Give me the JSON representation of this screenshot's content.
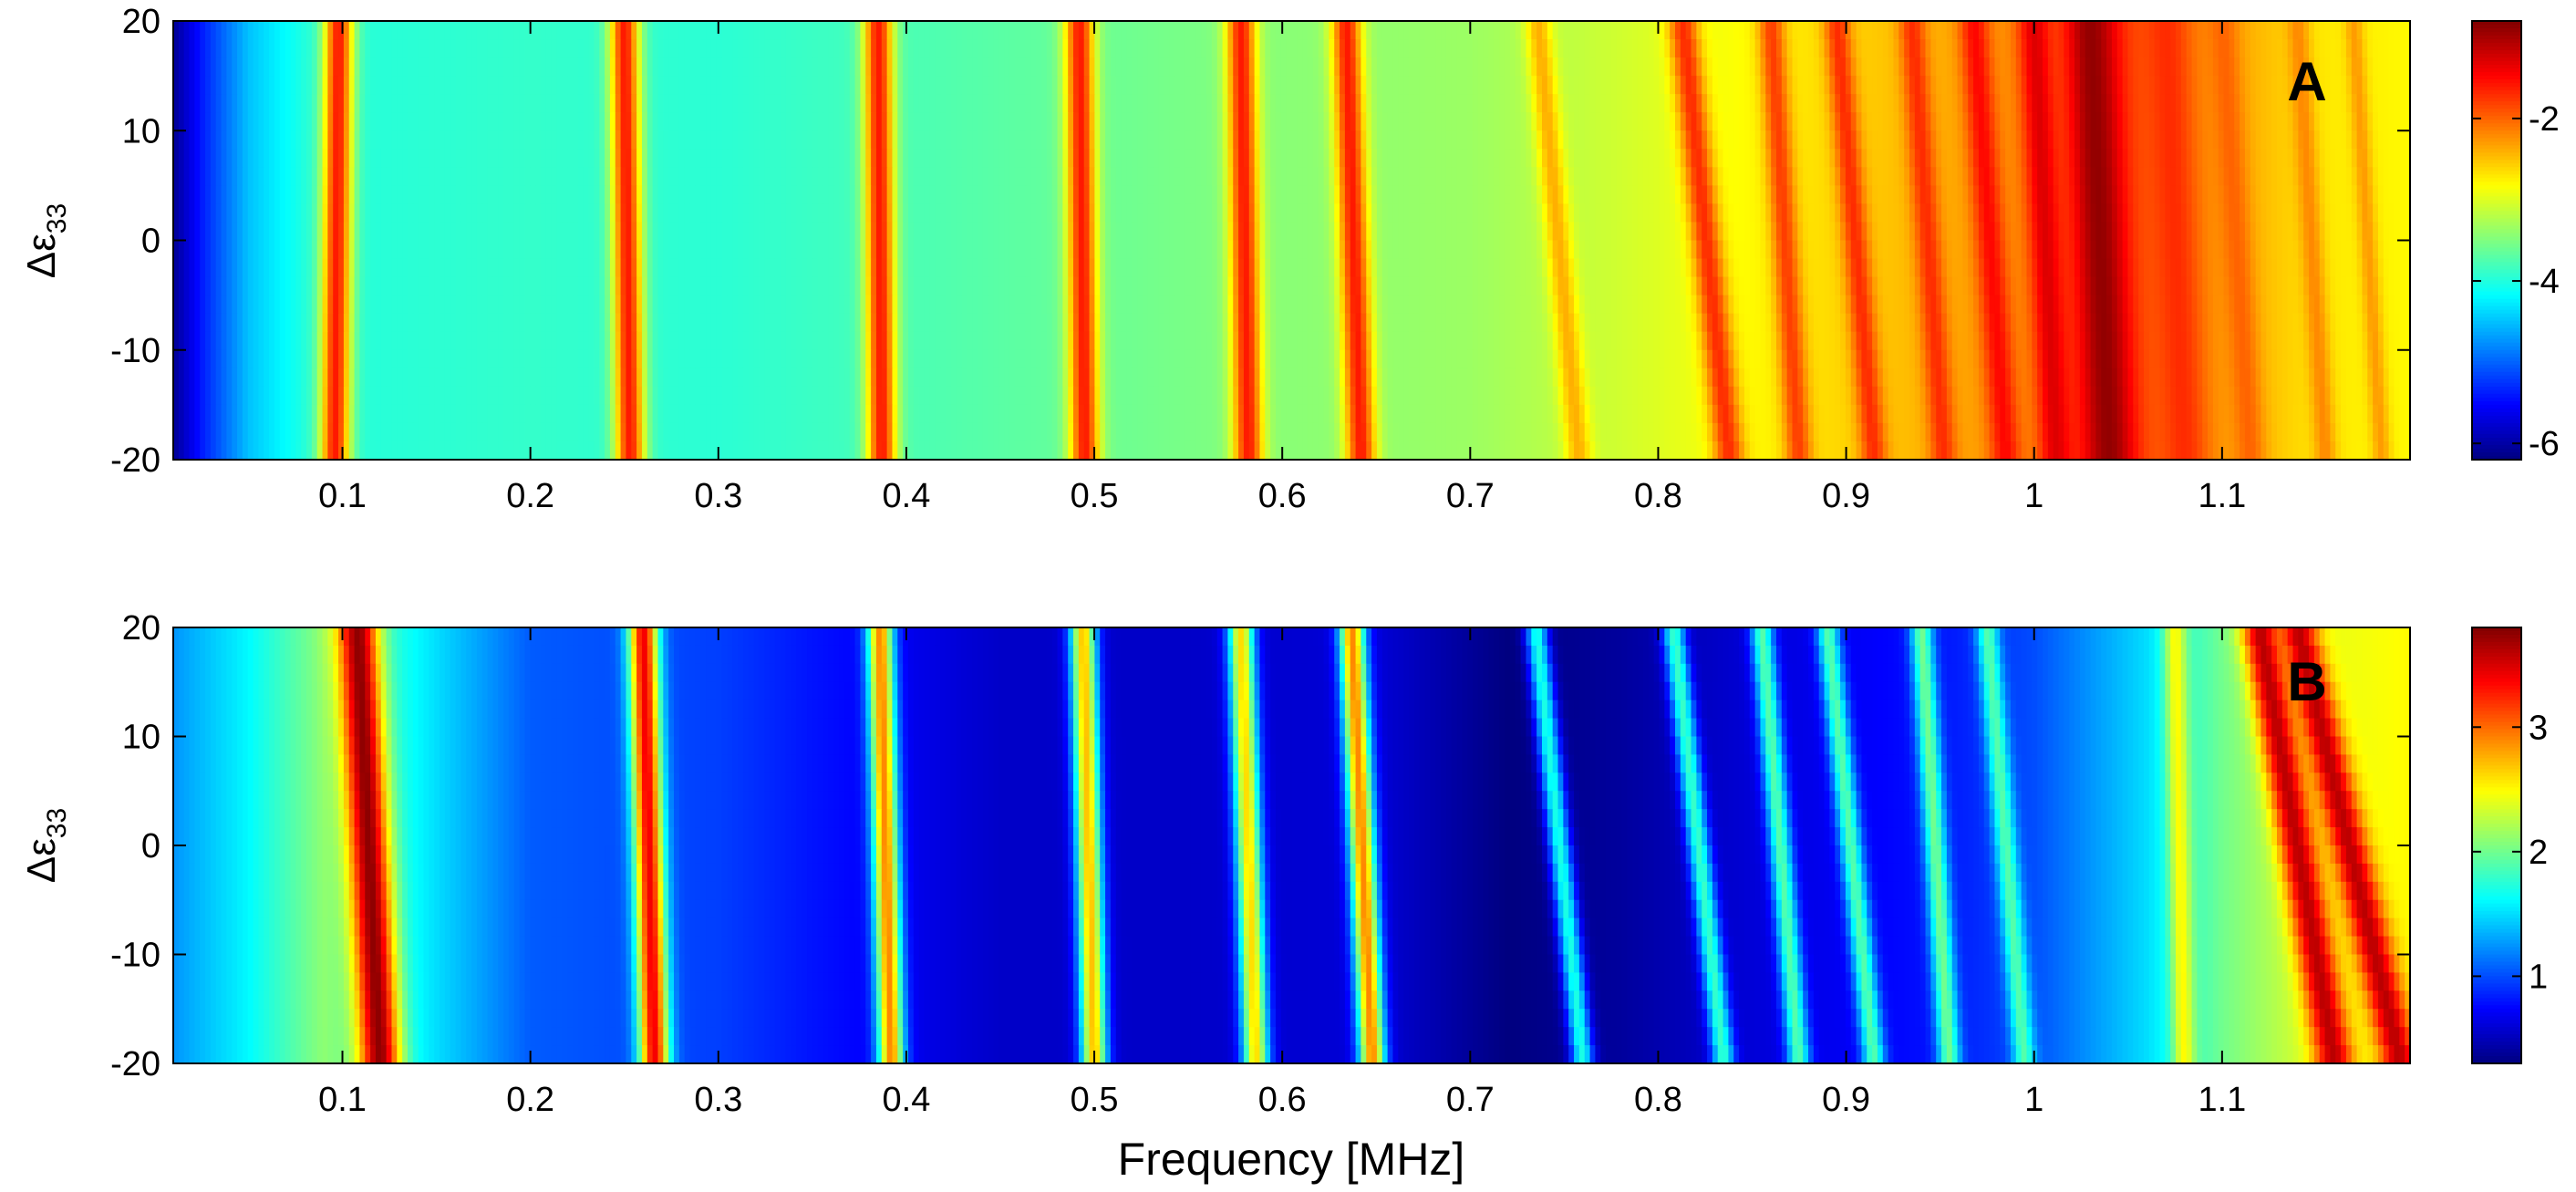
{
  "chart_data": [
    {
      "type": "heatmap",
      "panel_label": "A",
      "xlabel": "",
      "ylabel_main": "Δε",
      "ylabel_sub": "33",
      "xlim": [
        0.01,
        1.2
      ],
      "ylim": [
        -20,
        20
      ],
      "x_ticks": [
        "0.1",
        "0.2",
        "0.3",
        "0.4",
        "0.5",
        "0.6",
        "0.7",
        "0.8",
        "0.9",
        "1",
        "1.1"
      ],
      "y_ticks": [
        "-20",
        "-10",
        "0",
        "10",
        "20"
      ],
      "colorbar": {
        "min": -6.2,
        "max": -0.8,
        "ticks": [
          "-6",
          "-4",
          "-2"
        ]
      },
      "background": [
        {
          "x": 0.01,
          "v": -6.1
        },
        {
          "x": 0.025,
          "v": -5.4
        },
        {
          "x": 0.05,
          "v": -4.5
        },
        {
          "x": 0.08,
          "v": -4.0
        },
        {
          "x": 0.2,
          "v": -3.9
        },
        {
          "x": 0.3,
          "v": -3.95
        },
        {
          "x": 0.45,
          "v": -3.7
        },
        {
          "x": 0.6,
          "v": -3.45
        },
        {
          "x": 0.7,
          "v": -3.35
        },
        {
          "x": 0.8,
          "v": -3.0
        },
        {
          "x": 0.9,
          "v": -2.6
        },
        {
          "x": 1.0,
          "v": -2.2
        },
        {
          "x": 1.04,
          "v": -1.8
        },
        {
          "x": 1.1,
          "v": -2.3
        },
        {
          "x": 1.15,
          "v": -2.7
        },
        {
          "x": 1.2,
          "v": -2.8
        }
      ],
      "resonances": [
        {
          "f_at_top": 0.098,
          "f_at_bottom": 0.096,
          "peak": -1.6,
          "width": 0.008
        },
        {
          "f_at_top": 0.25,
          "f_at_bottom": 0.253,
          "peak": -1.6,
          "width": 0.008
        },
        {
          "f_at_top": 0.385,
          "f_at_bottom": 0.387,
          "peak": -1.6,
          "width": 0.008
        },
        {
          "f_at_top": 0.492,
          "f_at_bottom": 0.495,
          "peak": -1.6,
          "width": 0.008
        },
        {
          "f_at_top": 0.578,
          "f_at_bottom": 0.582,
          "peak": -1.6,
          "width": 0.008
        },
        {
          "f_at_top": 0.634,
          "f_at_bottom": 0.642,
          "peak": -1.6,
          "width": 0.008
        },
        {
          "f_at_top": 0.736,
          "f_at_bottom": 0.758,
          "peak": -2.4,
          "width": 0.007
        },
        {
          "f_at_top": 0.813,
          "f_at_bottom": 0.838,
          "peak": -1.7,
          "width": 0.008
        },
        {
          "f_at_top": 0.86,
          "f_at_bottom": 0.875,
          "peak": -1.8,
          "width": 0.007
        },
        {
          "f_at_top": 0.895,
          "f_at_bottom": 0.915,
          "peak": -1.7,
          "width": 0.007
        },
        {
          "f_at_top": 0.935,
          "f_at_bottom": 0.952,
          "peak": -1.7,
          "width": 0.007
        },
        {
          "f_at_top": 0.968,
          "f_at_bottom": 0.985,
          "peak": -1.5,
          "width": 0.008
        },
        {
          "f_at_top": 1.0,
          "f_at_bottom": 1.012,
          "peak": -1.3,
          "width": 0.009
        },
        {
          "f_at_top": 1.03,
          "f_at_bottom": 1.04,
          "peak": -0.9,
          "width": 0.014
        },
        {
          "f_at_top": 1.07,
          "f_at_bottom": 1.08,
          "peak": -1.7,
          "width": 0.012
        },
        {
          "f_at_top": 1.1,
          "f_at_bottom": 1.115,
          "peak": -2.0,
          "width": 0.008
        },
        {
          "f_at_top": 1.14,
          "f_at_bottom": 1.155,
          "peak": -2.2,
          "width": 0.006
        },
        {
          "f_at_top": 1.17,
          "f_at_bottom": 1.185,
          "peak": -2.3,
          "width": 0.005
        }
      ]
    },
    {
      "type": "heatmap",
      "panel_label": "B",
      "xlabel": "Frequency [MHz]",
      "ylabel_main": "Δε",
      "ylabel_sub": "33",
      "xlim": [
        0.01,
        1.2
      ],
      "ylim": [
        -20,
        20
      ],
      "x_ticks": [
        "0.1",
        "0.2",
        "0.3",
        "0.4",
        "0.5",
        "0.6",
        "0.7",
        "0.8",
        "0.9",
        "1",
        "1.1"
      ],
      "y_ticks": [
        "-20",
        "-10",
        "0",
        "10",
        "20"
      ],
      "colorbar": {
        "min": 0.3,
        "max": 3.8,
        "ticks": [
          "1",
          "2",
          "3"
        ]
      },
      "background": [
        {
          "x": 0.01,
          "v": 1.25
        },
        {
          "x": 0.05,
          "v": 1.6
        },
        {
          "x": 0.09,
          "v": 2.1
        },
        {
          "x": 0.15,
          "v": 1.5
        },
        {
          "x": 0.2,
          "v": 1.05
        },
        {
          "x": 0.3,
          "v": 0.95
        },
        {
          "x": 0.35,
          "v": 0.8
        },
        {
          "x": 0.45,
          "v": 0.55
        },
        {
          "x": 0.55,
          "v": 0.55
        },
        {
          "x": 0.65,
          "v": 0.6
        },
        {
          "x": 0.72,
          "v": 0.3
        },
        {
          "x": 0.78,
          "v": 0.4
        },
        {
          "x": 0.85,
          "v": 0.6
        },
        {
          "x": 0.95,
          "v": 0.8
        },
        {
          "x": 1.0,
          "v": 1.0
        },
        {
          "x": 1.06,
          "v": 1.5
        },
        {
          "x": 1.1,
          "v": 2.0
        },
        {
          "x": 1.15,
          "v": 2.4
        },
        {
          "x": 1.2,
          "v": 2.5
        }
      ],
      "resonances": [
        {
          "f_at_top": 0.108,
          "f_at_bottom": 0.12,
          "peak": 3.75,
          "width": 0.011
        },
        {
          "f_at_top": 0.26,
          "f_at_bottom": 0.266,
          "peak": 3.4,
          "width": 0.008
        },
        {
          "f_at_top": 0.386,
          "f_at_bottom": 0.392,
          "peak": 2.9,
          "width": 0.007
        },
        {
          "f_at_top": 0.494,
          "f_at_bottom": 0.5,
          "peak": 2.7,
          "width": 0.007
        },
        {
          "f_at_top": 0.578,
          "f_at_bottom": 0.586,
          "peak": 2.6,
          "width": 0.007
        },
        {
          "f_at_top": 0.637,
          "f_at_bottom": 0.648,
          "peak": 2.9,
          "width": 0.007
        },
        {
          "f_at_top": 0.735,
          "f_at_bottom": 0.76,
          "peak": 1.7,
          "width": 0.006
        },
        {
          "f_at_top": 0.808,
          "f_at_bottom": 0.835,
          "peak": 1.8,
          "width": 0.006
        },
        {
          "f_at_top": 0.855,
          "f_at_bottom": 0.875,
          "peak": 1.9,
          "width": 0.006
        },
        {
          "f_at_top": 0.89,
          "f_at_bottom": 0.915,
          "peak": 1.9,
          "width": 0.006
        },
        {
          "f_at_top": 0.94,
          "f_at_bottom": 0.955,
          "peak": 2.0,
          "width": 0.006
        },
        {
          "f_at_top": 0.975,
          "f_at_bottom": 0.995,
          "peak": 1.9,
          "width": 0.006
        },
        {
          "f_at_top": 1.075,
          "f_at_bottom": 1.08,
          "peak": 2.5,
          "width": 0.006
        },
        {
          "f_at_top": 1.12,
          "f_at_bottom": 1.16,
          "peak": 3.6,
          "width": 0.01
        },
        {
          "f_at_top": 1.14,
          "f_at_bottom": 1.195,
          "peak": 3.6,
          "width": 0.01
        }
      ]
    }
  ]
}
